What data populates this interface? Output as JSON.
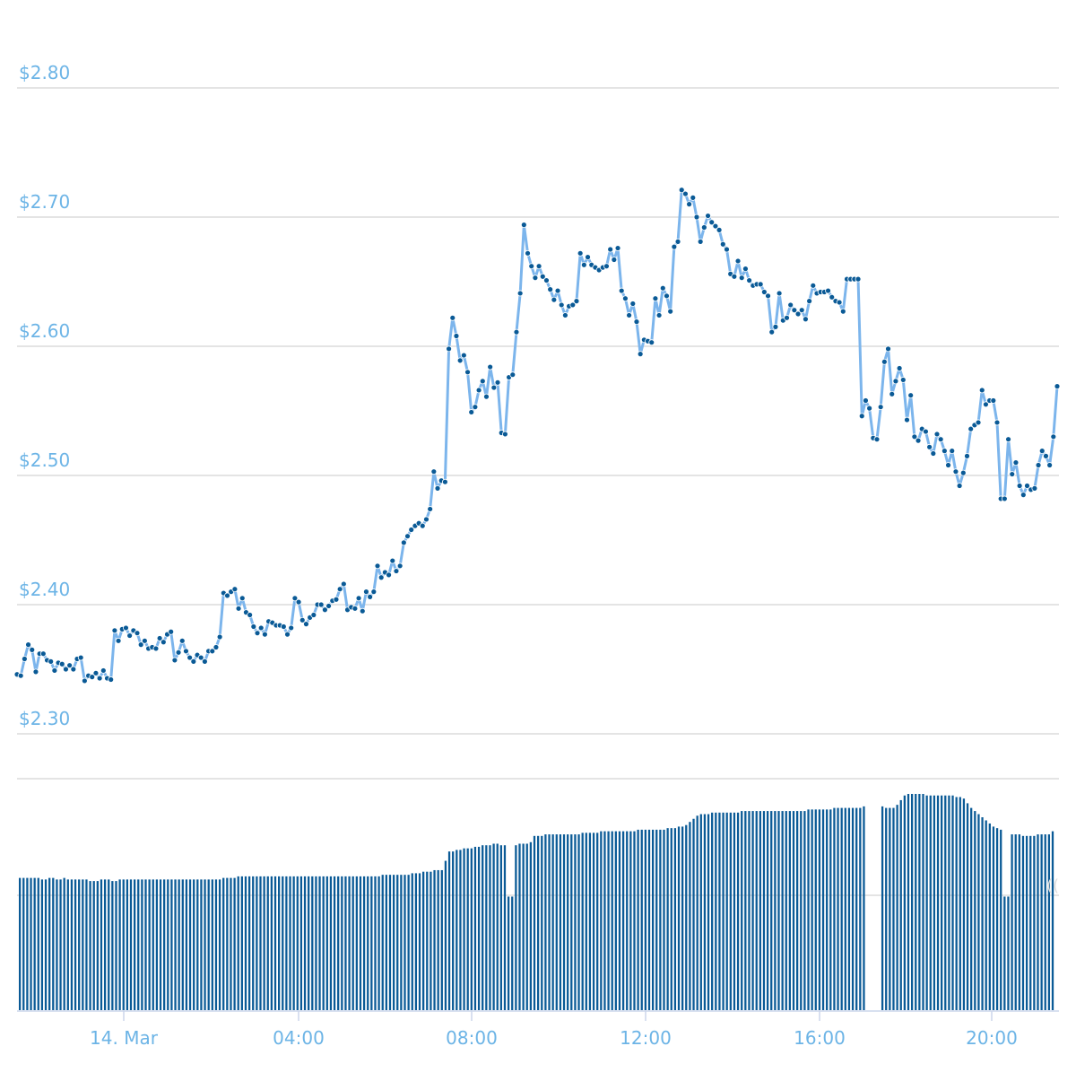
{
  "chart_data": [
    {
      "type": "line",
      "series": [
        {
          "values": [
            2.346,
            2.345,
            2.358,
            2.369,
            2.365,
            2.348,
            2.362,
            2.362,
            2.357,
            2.356,
            2.349,
            2.355,
            2.354,
            2.35,
            2.353,
            2.35,
            2.358,
            2.359,
            2.341,
            2.345,
            2.344,
            2.347,
            2.343,
            2.349,
            2.343,
            2.342,
            2.38,
            2.372,
            2.381,
            2.382,
            2.376,
            2.38,
            2.378,
            2.369,
            2.372,
            2.366,
            2.367,
            2.366,
            2.374,
            2.371,
            2.377,
            2.379,
            2.357,
            2.363,
            2.372,
            2.364,
            2.359,
            2.356,
            2.361,
            2.359,
            2.356,
            2.364,
            2.364,
            2.367,
            2.375,
            2.409,
            2.407,
            2.41,
            2.412,
            2.397,
            2.405,
            2.394,
            2.392,
            2.383,
            2.378,
            2.382,
            2.377,
            2.387,
            2.386,
            2.384,
            2.384,
            2.383,
            2.377,
            2.382,
            2.405,
            2.402,
            2.388,
            2.385,
            2.39,
            2.392,
            2.4,
            2.4,
            2.396,
            2.399,
            2.403,
            2.404,
            2.412,
            2.416,
            2.396,
            2.398,
            2.397,
            2.405,
            2.395,
            2.41,
            2.406,
            2.41,
            2.43,
            2.421,
            2.425,
            2.423,
            2.434,
            2.426,
            2.43,
            2.448,
            2.453,
            2.458,
            2.461,
            2.463,
            2.461,
            2.466,
            2.474,
            2.503,
            2.49,
            2.496,
            2.495,
            2.598,
            2.622,
            2.608,
            2.589,
            2.593,
            2.58,
            2.549,
            2.553,
            2.566,
            2.573,
            2.561,
            2.584,
            2.568,
            2.572,
            2.533,
            2.532,
            2.576,
            2.578,
            2.611,
            2.641,
            2.694,
            2.672,
            2.662,
            2.653,
            2.662,
            2.654,
            2.651,
            2.644,
            2.636,
            2.643,
            2.632,
            2.624,
            2.631,
            2.632,
            2.635,
            2.672,
            2.663,
            2.669,
            2.663,
            2.661,
            2.659,
            2.661,
            2.662,
            2.675,
            2.667,
            2.676,
            2.643,
            2.637,
            2.624,
            2.633,
            2.619,
            2.594,
            2.605,
            2.604,
            2.603,
            2.637,
            2.624,
            2.645,
            2.639,
            2.627,
            2.677,
            2.681,
            2.721,
            2.718,
            2.71,
            2.715,
            2.7,
            2.681,
            2.692,
            2.701,
            2.696,
            2.693,
            2.69,
            2.679,
            2.675,
            2.656,
            2.654,
            2.666,
            2.653,
            2.66,
            2.651,
            2.647,
            2.648,
            2.648,
            2.642,
            2.639,
            2.611,
            2.615,
            2.641,
            2.62,
            2.622,
            2.632,
            2.628,
            2.625,
            2.628,
            2.621,
            2.635,
            2.647,
            2.641,
            2.642,
            2.642,
            2.643,
            2.638,
            2.635,
            2.634,
            2.627,
            2.652,
            2.652,
            2.652,
            2.652,
            2.546,
            2.558,
            2.552,
            2.529,
            2.528,
            2.553,
            2.588,
            2.598,
            2.563,
            2.573,
            2.583,
            2.574,
            2.543,
            2.562,
            2.53,
            2.527,
            2.536,
            2.534,
            2.522,
            2.517,
            2.532,
            2.528,
            2.519,
            2.508,
            2.519,
            2.503,
            2.492,
            2.502,
            2.515,
            2.536,
            2.539,
            2.541,
            2.566,
            2.555,
            2.558,
            2.558,
            2.541,
            2.482,
            2.482,
            2.528,
            2.501,
            2.51,
            2.492,
            2.485,
            2.492,
            2.489,
            2.49,
            2.508,
            2.519,
            2.515,
            2.508,
            2.53,
            2.569
          ]
        }
      ],
      "x_ticks": [
        "14. Mar",
        "04:00",
        "08:00",
        "12:00",
        "16:00",
        "20:00"
      ],
      "y_ticks": [
        "$2.30",
        "$2.40",
        "$2.50",
        "$2.60",
        "$2.70",
        "$2.80"
      ],
      "ylim": [
        2.3,
        2.8
      ],
      "grid": true,
      "colors": {
        "line": "#7cb5ec",
        "marker": "#0a5a96",
        "tick_label": "#6cb4e6",
        "grid": "#dcdcdc"
      }
    },
    {
      "type": "bar",
      "series": [
        {
          "values": [
            0.85,
            0.85,
            0.85,
            0.85,
            0.85,
            0.85,
            0.84,
            0.84,
            0.85,
            0.85,
            0.84,
            0.84,
            0.85,
            0.84,
            0.84,
            0.84,
            0.84,
            0.84,
            0.84,
            0.83,
            0.83,
            0.83,
            0.84,
            0.84,
            0.84,
            0.83,
            0.83,
            0.84,
            0.84,
            0.84,
            0.84,
            0.84,
            0.84,
            0.84,
            0.84,
            0.84,
            0.84,
            0.84,
            0.84,
            0.84,
            0.84,
            0.84,
            0.84,
            0.84,
            0.84,
            0.84,
            0.84,
            0.84,
            0.84,
            0.84,
            0.84,
            0.84,
            0.84,
            0.84,
            0.84,
            0.85,
            0.85,
            0.85,
            0.85,
            0.86,
            0.86,
            0.86,
            0.86,
            0.86,
            0.86,
            0.86,
            0.86,
            0.86,
            0.86,
            0.86,
            0.86,
            0.86,
            0.86,
            0.86,
            0.86,
            0.86,
            0.86,
            0.86,
            0.86,
            0.86,
            0.86,
            0.86,
            0.86,
            0.86,
            0.86,
            0.86,
            0.86,
            0.86,
            0.86,
            0.86,
            0.86,
            0.86,
            0.86,
            0.86,
            0.86,
            0.86,
            0.86,
            0.86,
            0.87,
            0.87,
            0.87,
            0.87,
            0.87,
            0.87,
            0.87,
            0.87,
            0.88,
            0.88,
            0.88,
            0.89,
            0.89,
            0.89,
            0.9,
            0.9,
            0.9,
            0.96,
            1.02,
            1.02,
            1.03,
            1.03,
            1.04,
            1.04,
            1.04,
            1.05,
            1.05,
            1.06,
            1.06,
            1.06,
            1.07,
            1.07,
            1.06,
            1.06,
            0.73,
            0.73,
            1.06,
            1.07,
            1.07,
            1.07,
            1.08,
            1.12,
            1.12,
            1.12,
            1.13,
            1.13,
            1.13,
            1.13,
            1.13,
            1.13,
            1.13,
            1.13,
            1.13,
            1.13,
            1.14,
            1.14,
            1.14,
            1.14,
            1.14,
            1.15,
            1.15,
            1.15,
            1.15,
            1.15,
            1.15,
            1.15,
            1.15,
            1.15,
            1.15,
            1.16,
            1.16,
            1.16,
            1.16,
            1.16,
            1.16,
            1.16,
            1.16,
            1.17,
            1.17,
            1.17,
            1.18,
            1.18,
            1.19,
            1.21,
            1.23,
            1.25,
            1.26,
            1.26,
            1.26,
            1.27,
            1.27,
            1.27,
            1.27,
            1.27,
            1.27,
            1.27,
            1.27,
            1.28,
            1.28,
            1.28,
            1.28,
            1.28,
            1.28,
            1.28,
            1.28,
            1.28,
            1.28,
            1.28,
            1.28,
            1.28,
            1.28,
            1.28,
            1.28,
            1.28,
            1.28,
            1.29,
            1.29,
            1.29,
            1.29,
            1.29,
            1.29,
            1.29,
            1.3,
            1.3,
            1.3,
            1.3,
            1.3,
            1.3,
            1.3,
            1.3,
            1.31,
            0.0,
            0.0,
            0.0,
            0.0,
            1.31,
            1.3,
            1.3,
            1.3,
            1.32,
            1.35,
            1.38,
            1.39,
            1.39,
            1.39,
            1.39,
            1.39,
            1.38,
            1.38,
            1.38,
            1.38,
            1.38,
            1.38,
            1.38,
            1.38,
            1.37,
            1.37,
            1.36,
            1.33,
            1.3,
            1.28,
            1.26,
            1.24,
            1.22,
            1.2,
            1.18,
            1.17,
            1.16,
            0.73,
            0.73,
            1.13,
            1.13,
            1.13,
            1.12,
            1.12,
            1.12,
            1.12,
            1.13,
            1.13,
            1.13,
            1.13,
            1.15
          ]
        }
      ],
      "colors": {
        "bar": "#0a5a96",
        "grid": "#dcdcdc",
        "fragment": "#dcdcdc"
      },
      "right_edge_fragment": "(("
    }
  ]
}
